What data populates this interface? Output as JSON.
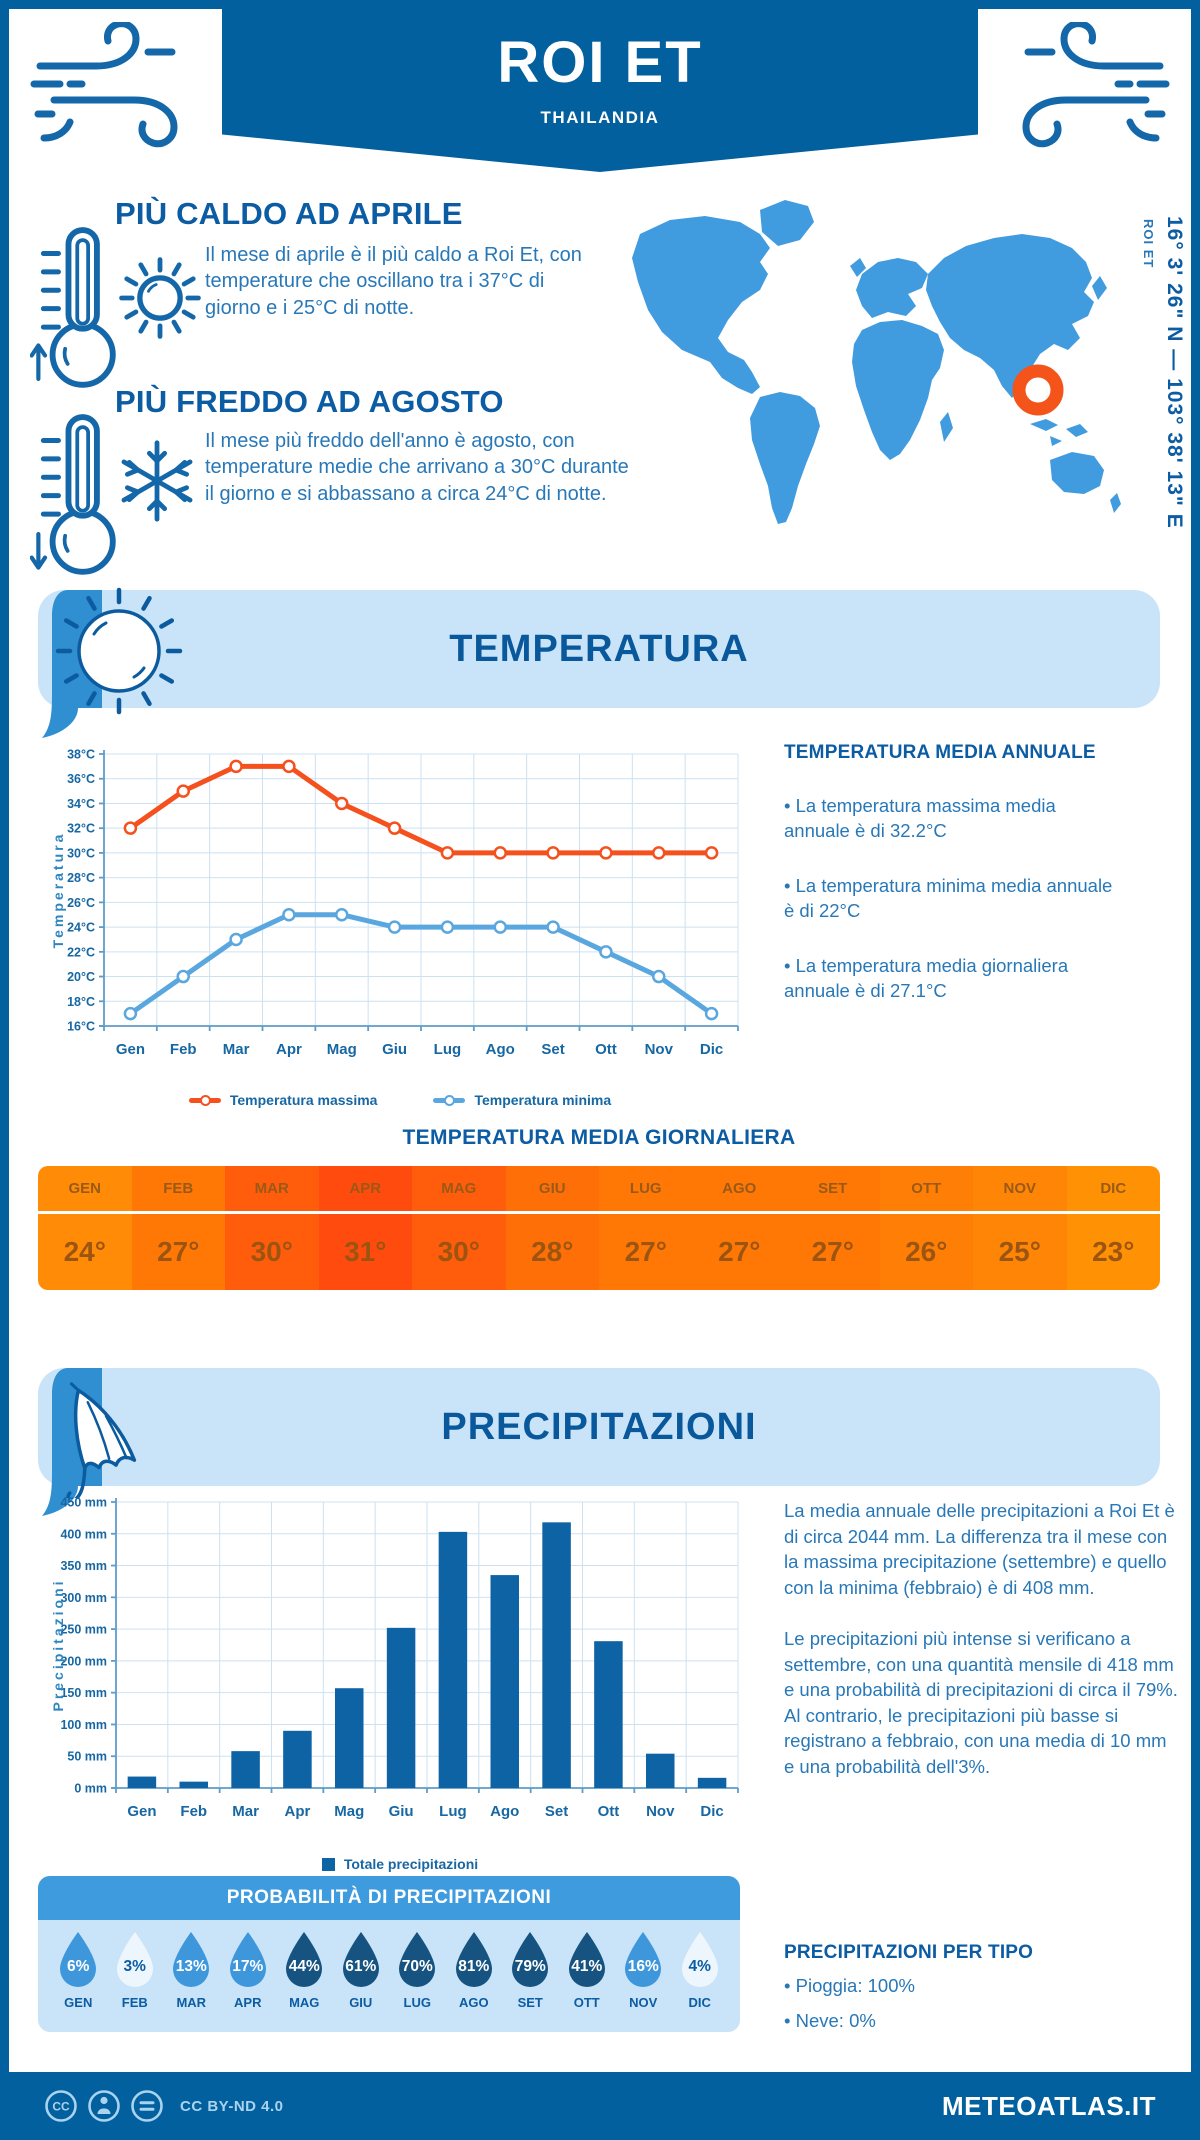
{
  "colors": {
    "brand_dark": "#02609E",
    "banner_light": "#C9E4F8",
    "tab_blue": "#2F8FD0",
    "heading_blue": "#0C5CA4",
    "body_blue": "#2878B8",
    "accent_orange": "#F4511E",
    "line_min_blue": "#5AA7DF",
    "bar_blue": "#0E63A4",
    "map_blue": "#419BDF",
    "marker_orange": "#F4531A",
    "drop_mid": "#3E96DB",
    "drop_dark": "#175380",
    "drop_light": "#EDF6FD",
    "prob_header": "#3E9BDE"
  },
  "header": {
    "title": "ROI ET",
    "subtitle": "THAILANDIA"
  },
  "highlights": {
    "hot": {
      "title": "PIÙ CALDO AD APRILE",
      "text": "Il mese di aprile è il più caldo a Roi Et, con temperature che oscillano tra i 37°C di giorno e i 25°C di notte."
    },
    "cold": {
      "title": "PIÙ FREDDO AD AGOSTO",
      "text": "Il mese più freddo dell'anno è agosto, con temperature medie che arrivano a 30°C durante il giorno e si abbassano a circa 24°C di notte."
    }
  },
  "map": {
    "label": "ROI ET",
    "coordinates": "16° 3' 26\" N — 103° 38' 13\" E"
  },
  "sections": {
    "temperature": "TEMPERATURA",
    "precipitation": "PRECIPITAZIONI"
  },
  "chart_data": [
    {
      "type": "line",
      "title": "Temperatura",
      "x": [
        "Gen",
        "Feb",
        "Mar",
        "Apr",
        "Mag",
        "Giu",
        "Lug",
        "Ago",
        "Set",
        "Ott",
        "Nov",
        "Dic"
      ],
      "ylabel": "Temperatura",
      "ylim": [
        16,
        38
      ],
      "ytick_step": 2,
      "ytick_suffix": "°C",
      "grid": true,
      "legend_position": "bottom",
      "series": [
        {
          "name": "Temperatura massima",
          "color": "#F4511E",
          "values": [
            32,
            35,
            37,
            37,
            34,
            32,
            30,
            30,
            30,
            30,
            30,
            30
          ]
        },
        {
          "name": "Temperatura minima",
          "color": "#5AA7DF",
          "values": [
            17,
            20,
            23,
            25,
            25,
            24,
            24,
            24,
            24,
            22,
            20,
            17
          ]
        }
      ]
    },
    {
      "type": "bar",
      "title": "Precipitazioni",
      "x": [
        "Gen",
        "Feb",
        "Mar",
        "Apr",
        "Mag",
        "Giu",
        "Lug",
        "Ago",
        "Set",
        "Ott",
        "Nov",
        "Dic"
      ],
      "ylabel": "Precipitazioni",
      "ylim": [
        0,
        450
      ],
      "ytick_step": 50,
      "ytick_suffix": " mm",
      "grid": true,
      "legend_position": "bottom",
      "series": [
        {
          "name": "Totale precipitazioni",
          "color": "#0E63A4",
          "values": [
            18,
            10,
            58,
            90,
            157,
            252,
            403,
            335,
            418,
            231,
            54,
            16
          ]
        }
      ]
    }
  ],
  "annual": {
    "title": "TEMPERATURA MEDIA ANNUALE",
    "bullets": [
      "• La temperatura massima media annuale è di 32.2°C",
      "• La temperatura minima media annuale è di 22°C",
      "• La temperatura media giornaliera annuale è di 27.1°C"
    ]
  },
  "daily_table": {
    "title": "TEMPERATURA MEDIA GIORNALIERA",
    "months": [
      "GEN",
      "FEB",
      "MAR",
      "APR",
      "MAG",
      "GIU",
      "LUG",
      "AGO",
      "SET",
      "OTT",
      "NOV",
      "DIC"
    ],
    "values": [
      "24°",
      "27°",
      "30°",
      "31°",
      "30°",
      "28°",
      "27°",
      "27°",
      "27°",
      "26°",
      "25°",
      "23°"
    ],
    "cell_colors": [
      "#FF8B06",
      "#FF7806",
      "#FF5D0B",
      "#FF4B0E",
      "#FF5D0B",
      "#FF6F08",
      "#FF7806",
      "#FF7806",
      "#FF7806",
      "#FF7F06",
      "#FF8506",
      "#FF9204"
    ]
  },
  "precip": {
    "p1": "La media annuale delle precipitazioni a Roi Et è di circa 2044 mm. La differenza tra il mese con la massima precipitazione (settembre) e quello con la minima (febbraio) è di 408 mm.",
    "p2": "Le precipitazioni più intense si verificano a settembre, con una quantità mensile di 418 mm e una probabilità di precipitazioni di circa il 79%. Al contrario, le precipitazioni più basse si registrano a febbraio, con una media di 10 mm e una probabilità dell'3%."
  },
  "probability": {
    "title": "PROBABILITÀ DI PRECIPITAZIONI",
    "months": [
      "GEN",
      "FEB",
      "MAR",
      "APR",
      "MAG",
      "GIU",
      "LUG",
      "AGO",
      "SET",
      "OTT",
      "NOV",
      "DIC"
    ],
    "values": [
      "6%",
      "3%",
      "13%",
      "17%",
      "44%",
      "61%",
      "70%",
      "81%",
      "79%",
      "41%",
      "16%",
      "4%"
    ],
    "levels": [
      "mid",
      "light",
      "mid",
      "mid",
      "dark",
      "dark",
      "dark",
      "dark",
      "dark",
      "dark",
      "mid",
      "light"
    ]
  },
  "ptype": {
    "title": "PRECIPITAZIONI PER TIPO",
    "bullets": [
      "• Pioggia: 100%",
      "• Neve: 0%"
    ]
  },
  "footer": {
    "license": "CC BY-ND 4.0",
    "brand": "METEOATLAS.IT"
  }
}
